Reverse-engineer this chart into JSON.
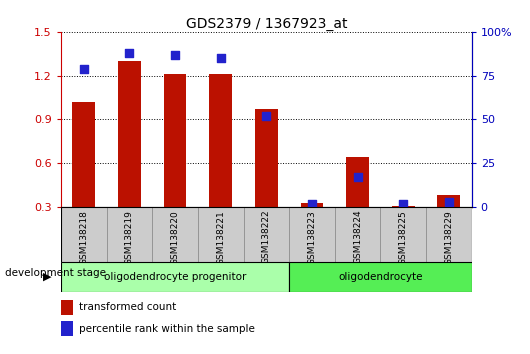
{
  "title": "GDS2379 / 1367923_at",
  "samples": [
    "GSM138218",
    "GSM138219",
    "GSM138220",
    "GSM138221",
    "GSM138222",
    "GSM138223",
    "GSM138224",
    "GSM138225",
    "GSM138229"
  ],
  "red_values": [
    1.02,
    1.3,
    1.21,
    1.21,
    0.97,
    0.33,
    0.64,
    0.31,
    0.38
  ],
  "blue_values": [
    79,
    88,
    87,
    85,
    52,
    2,
    17,
    2,
    3
  ],
  "ylim_left": [
    0.3,
    1.5
  ],
  "ylim_right": [
    0,
    100
  ],
  "yticks_left": [
    0.3,
    0.6,
    0.9,
    1.2,
    1.5
  ],
  "yticks_right": [
    0,
    25,
    50,
    75,
    100
  ],
  "ytick_labels_left": [
    "0.3",
    "0.6",
    "0.9",
    "1.2",
    "1.5"
  ],
  "ytick_labels_right": [
    "0",
    "25",
    "50",
    "75",
    "100%"
  ],
  "red_color": "#bb1100",
  "blue_color": "#2222cc",
  "bar_width": 0.5,
  "blue_marker_size": 36,
  "groups": [
    {
      "label": "oligodendrocyte progenitor",
      "start": 0,
      "end": 5,
      "color": "#aaffaa"
    },
    {
      "label": "oligodendrocyte",
      "start": 5,
      "end": 9,
      "color": "#55ee55"
    }
  ],
  "stage_label": "development stage",
  "legend_red": "transformed count",
  "legend_blue": "percentile rank within the sample",
  "tick_bg": "#cccccc",
  "grid_linestyle": "dotted",
  "left_axis_color": "#cc0000",
  "right_axis_color": "#0000bb"
}
